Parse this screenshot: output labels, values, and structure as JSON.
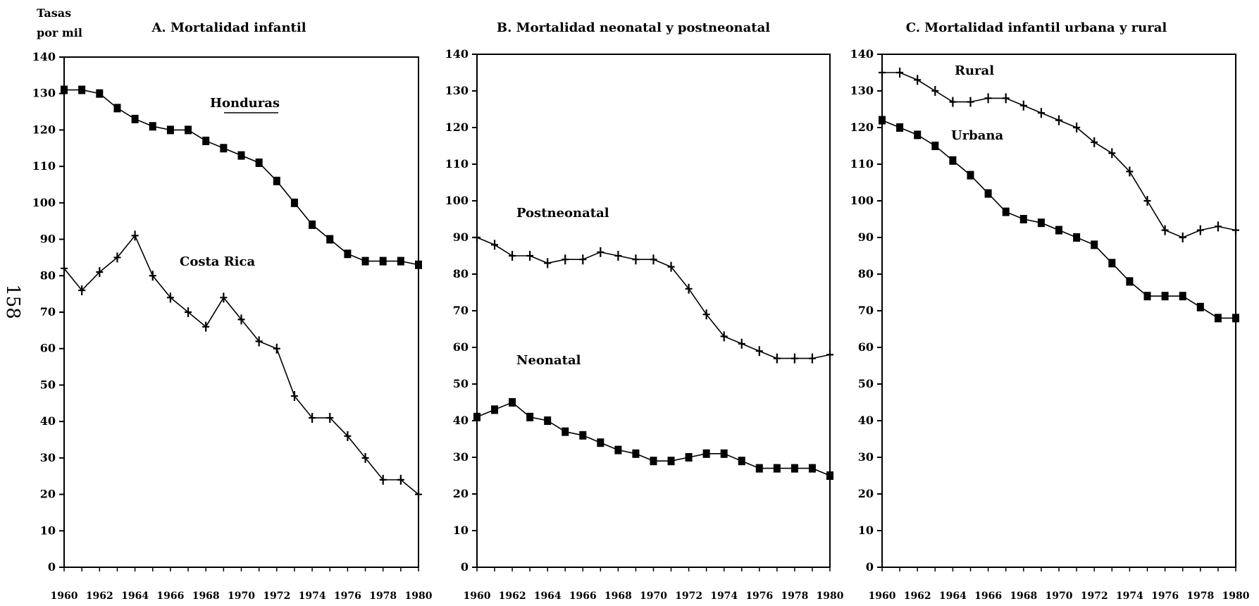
{
  "figure": {
    "y_axis_title_line1": "Tasas",
    "y_axis_title_line2": "por mil",
    "page_number": "158"
  },
  "chart_data": [
    {
      "type": "line",
      "title": "A. Mortalidad infantil",
      "xlabel": "",
      "ylabel": "Tasas por mil",
      "xlim": [
        1960,
        1980
      ],
      "ylim": [
        0,
        140
      ],
      "x_ticks": [
        1960,
        1962,
        1964,
        1966,
        1968,
        1970,
        1972,
        1974,
        1976,
        1978,
        1980
      ],
      "y_ticks": [
        0,
        10,
        20,
        30,
        40,
        50,
        60,
        70,
        80,
        90,
        100,
        110,
        120,
        130,
        140
      ],
      "grid": false,
      "x": [
        1960,
        1961,
        1962,
        1963,
        1964,
        1965,
        1966,
        1967,
        1968,
        1969,
        1970,
        1971,
        1972,
        1973,
        1974,
        1975,
        1976,
        1977,
        1978,
        1979,
        1980
      ],
      "series": [
        {
          "name": "Honduras",
          "marker": "square",
          "values": [
            131,
            131,
            130,
            126,
            123,
            121,
            120,
            120,
            117,
            115,
            113,
            111,
            106,
            100,
            94,
            90,
            86,
            84,
            84,
            84,
            83
          ]
        },
        {
          "name": "Costa Rica",
          "marker": "cross",
          "values": [
            82,
            76,
            81,
            85,
            91,
            80,
            74,
            70,
            66,
            74,
            68,
            62,
            60,
            47,
            41,
            41,
            36,
            30,
            24,
            24,
            20
          ]
        }
      ]
    },
    {
      "type": "line",
      "title": "B. Mortalidad neonatal y postneonatal",
      "xlabel": "",
      "ylabel": "",
      "xlim": [
        1960,
        1980
      ],
      "ylim": [
        0,
        140
      ],
      "x_ticks": [
        1960,
        1962,
        1964,
        1966,
        1968,
        1970,
        1972,
        1974,
        1976,
        1978,
        1980
      ],
      "y_ticks": [
        0,
        10,
        20,
        30,
        40,
        50,
        60,
        70,
        80,
        90,
        100,
        110,
        120,
        130,
        140
      ],
      "grid": false,
      "x": [
        1960,
        1961,
        1962,
        1963,
        1964,
        1965,
        1966,
        1967,
        1968,
        1969,
        1970,
        1971,
        1972,
        1973,
        1974,
        1975,
        1976,
        1977,
        1978,
        1979,
        1980
      ],
      "series": [
        {
          "name": "Postneonatal",
          "marker": "cross",
          "values": [
            90,
            88,
            85,
            85,
            83,
            84,
            84,
            86,
            85,
            84,
            84,
            82,
            76,
            69,
            63,
            61,
            59,
            57,
            57,
            57,
            58
          ]
        },
        {
          "name": "Neonatal",
          "marker": "square",
          "values": [
            41,
            43,
            45,
            41,
            40,
            37,
            36,
            34,
            32,
            31,
            29,
            29,
            30,
            31,
            31,
            29,
            27,
            27,
            27,
            27,
            25
          ]
        }
      ]
    },
    {
      "type": "line",
      "title": "C. Mortalidad infantil urbana y rural",
      "xlabel": "",
      "ylabel": "",
      "xlim": [
        1960,
        1980
      ],
      "ylim": [
        0,
        140
      ],
      "x_ticks": [
        1960,
        1962,
        1964,
        1966,
        1968,
        1970,
        1972,
        1974,
        1976,
        1978,
        1980
      ],
      "y_ticks": [
        0,
        10,
        20,
        30,
        40,
        50,
        60,
        70,
        80,
        90,
        100,
        110,
        120,
        130,
        140
      ],
      "grid": false,
      "x": [
        1960,
        1961,
        1962,
        1963,
        1964,
        1965,
        1966,
        1967,
        1968,
        1969,
        1970,
        1971,
        1972,
        1973,
        1974,
        1975,
        1976,
        1977,
        1978,
        1979,
        1980
      ],
      "series": [
        {
          "name": "Rural",
          "marker": "cross",
          "values": [
            135,
            135,
            133,
            130,
            127,
            127,
            128,
            128,
            126,
            124,
            122,
            120,
            116,
            113,
            108,
            100,
            92,
            90,
            92,
            93,
            92
          ]
        },
        {
          "name": "Urbana",
          "marker": "square",
          "values": [
            122,
            120,
            118,
            115,
            111,
            107,
            102,
            97,
            95,
            94,
            92,
            90,
            88,
            83,
            78,
            74,
            74,
            74,
            71,
            68,
            68
          ]
        }
      ]
    }
  ]
}
